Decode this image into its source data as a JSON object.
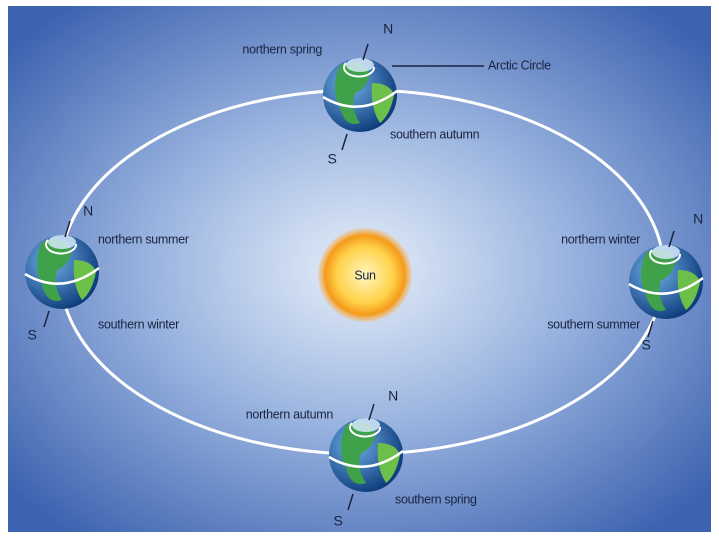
{
  "sun": {
    "label": "Sun"
  },
  "annotation": "Arctic Circle",
  "positions": [
    {
      "north": "N",
      "south": "S",
      "labels": [
        "northern spring",
        "southern autumn"
      ]
    },
    {
      "north": "N",
      "south": "S",
      "labels": [
        "northern summer",
        "southern winter"
      ]
    },
    {
      "north": "N",
      "south": "S",
      "labels": [
        "northern winter",
        "southern summer"
      ]
    },
    {
      "north": "N",
      "south": "S",
      "labels": [
        "northern autumn",
        "southern spring"
      ]
    }
  ]
}
